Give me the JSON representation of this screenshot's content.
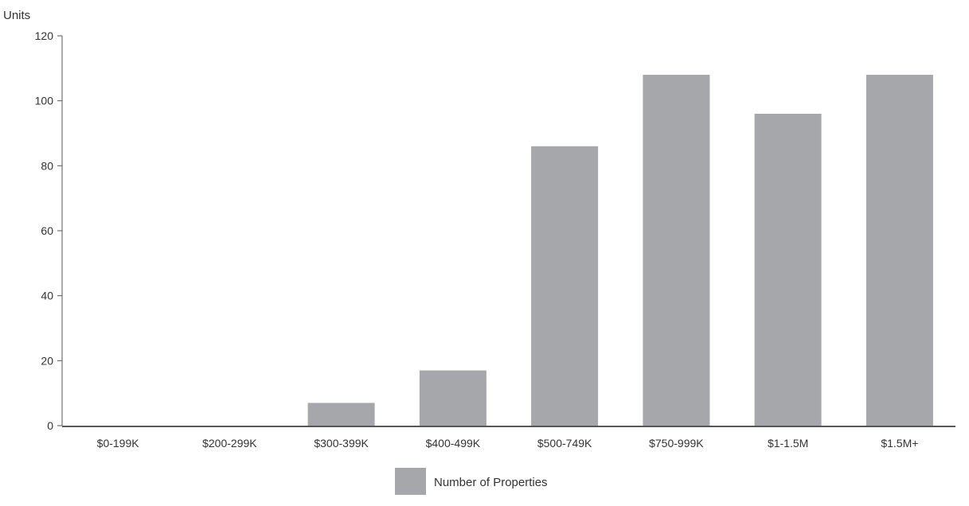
{
  "chart_data": {
    "type": "bar",
    "title": "",
    "xlabel": "",
    "ylabel": "Units",
    "ylim": [
      0,
      120
    ],
    "yticks": [
      0,
      20,
      40,
      60,
      80,
      100,
      120
    ],
    "grid": false,
    "legend_position": "bottom",
    "categories": [
      "$0-199K",
      "$200-299K",
      "$300-399K",
      "$400-499K",
      "$500-749K",
      "$750-999K",
      "$1-1.5M",
      "$1.5M+"
    ],
    "series": [
      {
        "name": "Number of Properties",
        "color": "#a6a7aa",
        "values": [
          0,
          0,
          7,
          17,
          86,
          108,
          96,
          108
        ]
      }
    ]
  }
}
